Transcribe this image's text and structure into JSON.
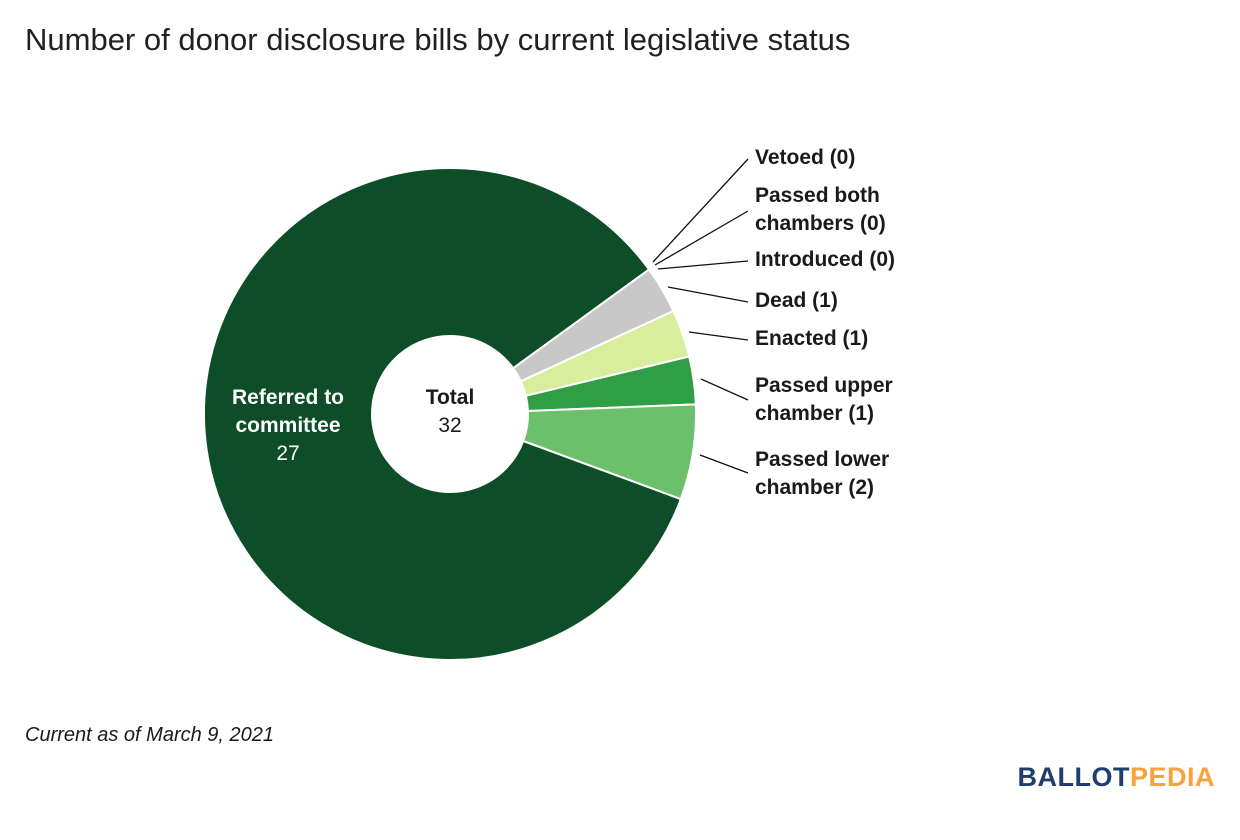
{
  "footer": {
    "note": "Current as of March 9, 2021"
  },
  "logo": {
    "ballot": "BALLOT",
    "pedia": "PEDIA"
  },
  "chart_data": {
    "type": "pie",
    "donut": true,
    "title": "Number of donor disclosure bills by current legislative status",
    "total_label": "Total",
    "total_value": 32,
    "start_angle_deg": 54,
    "labels_position": "right",
    "inner_radius_px": 78,
    "outer_radius_px": 246,
    "segments": [
      {
        "id": "vetoed",
        "name": "Vetoed",
        "value": 0,
        "display": "Vetoed (0)",
        "color": null
      },
      {
        "id": "passed-both-chambers",
        "name": "Passed both chambers",
        "value": 0,
        "display": "Passed both chambers (0)",
        "color": null
      },
      {
        "id": "introduced",
        "name": "Introduced",
        "value": 0,
        "display": "Introduced (0)",
        "color": null
      },
      {
        "id": "dead",
        "name": "Dead",
        "value": 1,
        "display": "Dead (1)",
        "color": "#c8c8c8"
      },
      {
        "id": "enacted",
        "name": "Enacted",
        "value": 1,
        "display": "Enacted (1)",
        "color": "#d9ee9d"
      },
      {
        "id": "passed-upper-chamber",
        "name": "Passed upper chamber",
        "value": 1,
        "display": "Passed upper chamber (1)",
        "color": "#2f9e44"
      },
      {
        "id": "passed-lower-chamber",
        "name": "Passed lower chamber",
        "value": 2,
        "display": "Passed lower chamber (2)",
        "color": "#6cbf6b"
      },
      {
        "id": "referred-to-committee",
        "name": "Referred to committee",
        "value": 27,
        "color": "#0d4e28"
      }
    ]
  }
}
